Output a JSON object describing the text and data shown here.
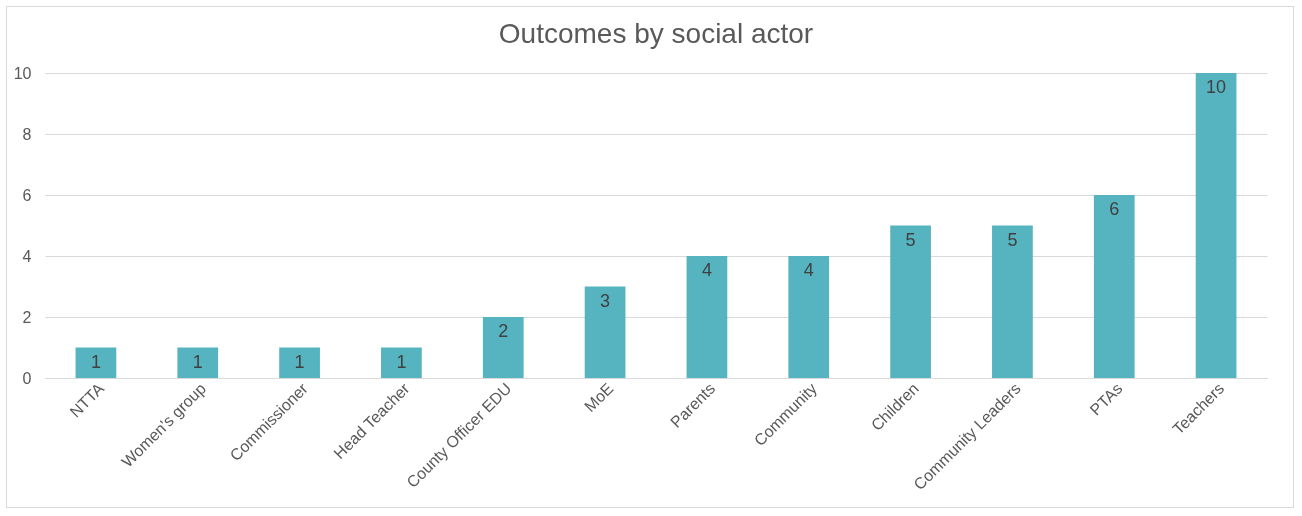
{
  "chart_data": {
    "type": "bar",
    "title": "Outcomes by social actor",
    "categories": [
      "NTTA",
      "Women's group",
      "Commissioner",
      "Head Teacher",
      "County Officer EDU",
      "MoE",
      "Parents",
      "Community",
      "Children",
      "Community Leaders",
      "PTAs",
      "Teachers"
    ],
    "values": [
      1,
      1,
      1,
      1,
      2,
      3,
      4,
      4,
      5,
      5,
      6,
      10
    ],
    "color": "#56b4c0",
    "ylim": [
      0,
      10
    ],
    "yticks": [
      0,
      2,
      4,
      6,
      8,
      10
    ],
    "grid": "y",
    "data_labels": true
  }
}
